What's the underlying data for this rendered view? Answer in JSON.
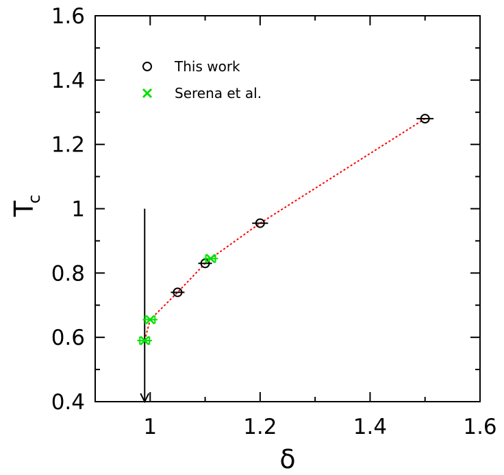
{
  "chart_data": {
    "type": "scatter",
    "xlabel": "δ",
    "ylabel": "T",
    "ylabel_subscript": "c",
    "xlim": [
      0.9,
      1.6
    ],
    "ylim": [
      0.4,
      1.6
    ],
    "x_ticks": [
      1,
      1.2,
      1.4,
      1.6
    ],
    "y_ticks": [
      0.4,
      0.6,
      0.8,
      1,
      1.2,
      1.4,
      1.6
    ],
    "x_tick_labels": [
      "1",
      "1.2",
      "1.4",
      "1.6"
    ],
    "y_tick_labels": [
      "0.4",
      "0.6",
      "0.8",
      "1",
      "1.2",
      "1.4",
      "1.6"
    ],
    "grid": false,
    "legend_position": "top-left",
    "series": [
      {
        "name": "This work",
        "marker": "circle",
        "color": "#000000",
        "points": [
          {
            "x": 1.05,
            "y": 0.74,
            "xerr": 0.005
          },
          {
            "x": 1.1,
            "y": 0.83,
            "xerr": 0.005
          },
          {
            "x": 1.2,
            "y": 0.955,
            "xerr": 0.007
          },
          {
            "x": 1.5,
            "y": 1.28,
            "xerr": 0.008
          }
        ]
      },
      {
        "name": "Serena et al.",
        "marker": "x",
        "color": "#00e000",
        "points": [
          {
            "x": 0.99,
            "y": 0.59,
            "xerr": 0.006
          },
          {
            "x": 1.0,
            "y": 0.655,
            "xerr": 0.006
          },
          {
            "x": 1.11,
            "y": 0.845,
            "xerr": 0.006
          }
        ]
      }
    ],
    "fit_line": {
      "color": "#ff0000",
      "style": "dotted",
      "points": [
        [
          0.99,
          0.59
        ],
        [
          1.0,
          0.655
        ],
        [
          1.05,
          0.74
        ],
        [
          1.1,
          0.83
        ],
        [
          1.11,
          0.845
        ],
        [
          1.2,
          0.955
        ],
        [
          1.5,
          1.28
        ]
      ]
    },
    "annotation_arrow": {
      "x": 0.99,
      "y_from": 1.0,
      "y_to": 0.4,
      "color": "#000000"
    }
  }
}
